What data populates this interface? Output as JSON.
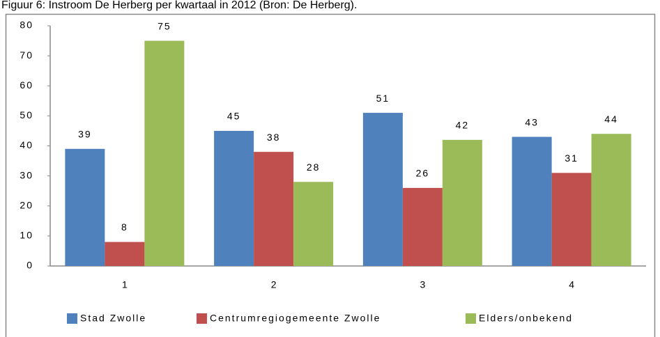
{
  "chart_data": {
    "type": "bar",
    "title": "Figuur 6: Instroom De Herberg per kwartaal in 2012 (Bron: De Herberg).",
    "categories": [
      "1",
      "2",
      "3",
      "4"
    ],
    "series": [
      {
        "name": "Stad Zwolle",
        "color": "#4f81bd",
        "values": [
          39,
          45,
          51,
          43
        ]
      },
      {
        "name": "Centrumregiogemeente Zwolle",
        "color": "#c0504d",
        "values": [
          8,
          38,
          26,
          31
        ]
      },
      {
        "name": "Elders/onbekend",
        "color": "#9bbb59",
        "values": [
          75,
          28,
          42,
          44
        ]
      }
    ],
    "ylim": [
      0,
      80
    ],
    "yticks": [
      0,
      10,
      20,
      30,
      40,
      50,
      60,
      70,
      80
    ],
    "grid": false,
    "legend": "bottom"
  }
}
